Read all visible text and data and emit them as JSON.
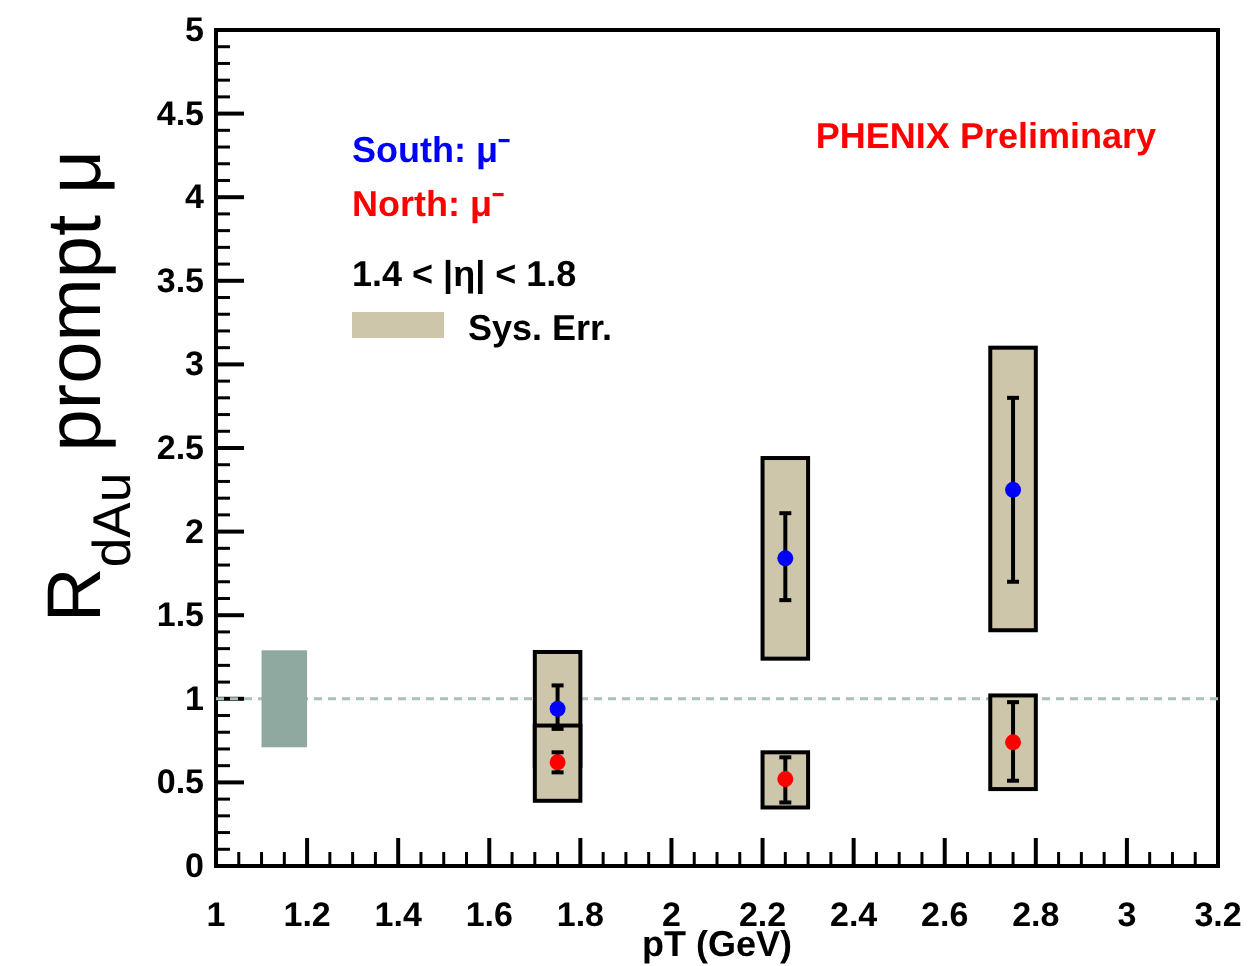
{
  "chart_data": {
    "type": "scatter",
    "xlabel": "pT (GeV)",
    "ylabel": "R$_{dAu}$ prompt μ",
    "xlim": [
      1,
      3.2
    ],
    "xticks": [
      1,
      1.2,
      1.4,
      1.6,
      1.8,
      2,
      2.2,
      2.4,
      2.6,
      2.8,
      3,
      3.2
    ],
    "ylim": [
      0,
      5
    ],
    "yticks": [
      0,
      0.5,
      1,
      1.5,
      2,
      2.5,
      3,
      3.5,
      4,
      4.5,
      5
    ],
    "grid": false,
    "legend": "top left",
    "marker": "circle",
    "annotations": [
      "PHENIX Preliminary",
      "1.4 < |η| < 1.8"
    ],
    "ref_lines": [
      {
        "axis": "y",
        "value": 1,
        "color": "#a8c0b8",
        "line_style": "dashed"
      }
    ],
    "series": [
      {
        "type": "bar",
        "color": "#8fa8a0",
        "x": [
          1.15
        ],
        "base": [
          0.71
        ],
        "values": [
          0.58
        ]
      },
      {
        "type": "bar",
        "name": "Sys. Err.",
        "color": "#cdc6aa",
        "x": [
          1.75,
          2.25,
          2.75
        ],
        "base": [
          0.6,
          1.24,
          1.41
        ],
        "values": [
          0.68,
          1.2,
          1.69
        ]
      },
      {
        "type": "bar",
        "color": "#cdc6aa",
        "x": [
          1.75,
          2.25,
          2.75
        ],
        "base": [
          0.39,
          0.35,
          0.46
        ],
        "values": [
          0.45,
          0.33,
          0.56
        ]
      },
      {
        "name": "South: μ⁻",
        "color": "#0000ff",
        "x": [
          1.75,
          2.25,
          2.75
        ],
        "values": [
          0.94,
          1.84,
          2.25
        ],
        "errors": [
          [
            0.82,
            1.08
          ],
          [
            1.59,
            2.11
          ],
          [
            1.7,
            2.8
          ]
        ]
      },
      {
        "name": "North: μ⁻",
        "color": "#ff0000",
        "x": [
          1.75,
          2.25,
          2.75
        ],
        "values": [
          0.62,
          0.52,
          0.74
        ],
        "errors": [
          [
            0.56,
            0.68
          ],
          [
            0.38,
            0.65
          ],
          [
            0.51,
            0.98
          ]
        ]
      }
    ]
  }
}
